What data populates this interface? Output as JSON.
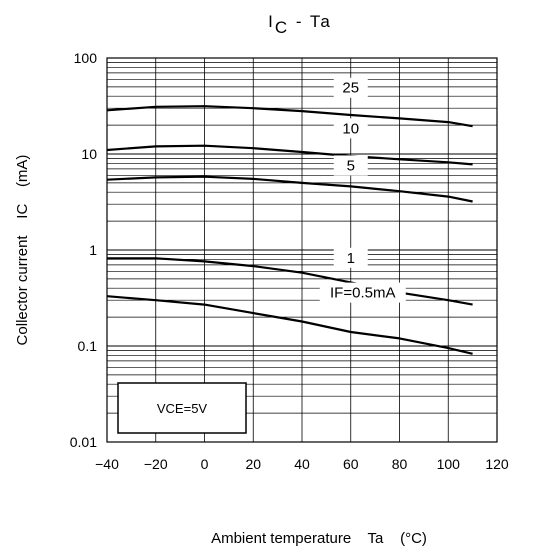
{
  "chart_data": {
    "type": "line",
    "title_main": "I",
    "title_sub": "C",
    "title_rest": " - Ta",
    "xlabel": "Ambient temperature    Ta    (°C)",
    "ylabel": "Collector current    IC    (mA)",
    "x_ticks": [
      "−40",
      "−20",
      "0",
      "20",
      "40",
      "60",
      "80",
      "100",
      "120"
    ],
    "x_tick_values": [
      -40,
      -20,
      0,
      20,
      40,
      60,
      80,
      100,
      120
    ],
    "y_ticks": [
      "0.01",
      "0.1",
      "1",
      "10",
      "100"
    ],
    "y_tick_values": [
      0.01,
      0.1,
      1,
      10,
      100
    ],
    "xlim": [
      -40,
      120
    ],
    "ylim": [
      0.01,
      100
    ],
    "y_scale": "log",
    "grid": true,
    "annotation_box": "VCE=5V",
    "series": [
      {
        "name": "25",
        "x": [
          -40,
          -20,
          0,
          20,
          40,
          60,
          80,
          100,
          110
        ],
        "values": [
          28.5,
          31,
          31.5,
          30,
          28,
          25.5,
          23.5,
          21.5,
          19.5
        ]
      },
      {
        "name": "10",
        "x": [
          -40,
          -20,
          0,
          20,
          40,
          60,
          80,
          100,
          110
        ],
        "values": [
          11,
          12,
          12.2,
          11.5,
          10.5,
          9.5,
          8.8,
          8.2,
          7.8
        ]
      },
      {
        "name": "5",
        "x": [
          -40,
          -20,
          0,
          20,
          40,
          60,
          80,
          100,
          110
        ],
        "values": [
          5.4,
          5.7,
          5.8,
          5.5,
          5,
          4.6,
          4.1,
          3.6,
          3.2
        ]
      },
      {
        "name": "1",
        "x": [
          -40,
          -20,
          0,
          20,
          40,
          60,
          80,
          100,
          110
        ],
        "values": [
          0.82,
          0.82,
          0.76,
          0.68,
          0.58,
          0.46,
          0.36,
          0.3,
          0.27
        ]
      },
      {
        "name": "IF=0.5mA",
        "x": [
          -40,
          -20,
          0,
          20,
          40,
          60,
          80,
          100,
          110
        ],
        "values": [
          0.33,
          0.3,
          0.27,
          0.22,
          0.18,
          0.14,
          0.12,
          0.095,
          0.083
        ]
      }
    ]
  }
}
